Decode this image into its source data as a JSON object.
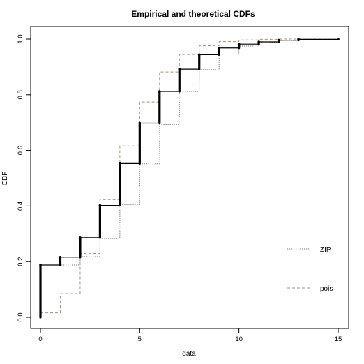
{
  "chart_data": {
    "type": "line",
    "title": "Empirical and theoretical CDFs",
    "xlabel": "data",
    "ylabel": "CDF",
    "xlim": [
      0,
      15
    ],
    "ylim": [
      0,
      1
    ],
    "x_ticks": [
      0,
      5,
      10,
      15
    ],
    "y_ticks": [
      0.0,
      0.2,
      0.4,
      0.6,
      0.8,
      1.0
    ],
    "x_tick_labels": [
      "0",
      "5",
      "10",
      "15"
    ],
    "y_tick_labels": [
      "0.0",
      "0.2",
      "0.4",
      "0.6",
      "0.8",
      "1.0"
    ],
    "grid": false,
    "legend_position": "right",
    "empirical": {
      "x": [
        0,
        1,
        2,
        3,
        4,
        5,
        6,
        7,
        8,
        9,
        10,
        11,
        12,
        13,
        15
      ],
      "cdf": [
        0.188,
        0.216,
        0.286,
        0.402,
        0.553,
        0.698,
        0.812,
        0.892,
        0.944,
        0.968,
        0.982,
        0.99,
        0.996,
        0.999,
        1.0
      ],
      "color": "#000000"
    },
    "series": [
      {
        "name": "ZIP",
        "style": "dotted",
        "color": "#777777",
        "x": [
          0,
          1,
          2,
          3,
          4,
          5,
          6,
          7,
          8,
          9,
          10,
          11,
          12,
          13,
          14,
          15
        ],
        "cdf": [
          0.188,
          0.188,
          0.218,
          0.283,
          0.405,
          0.552,
          0.693,
          0.812,
          0.89,
          0.946,
          0.975,
          0.988,
          0.995,
          0.998,
          0.999,
          1.0
        ]
      },
      {
        "name": "pois",
        "style": "dashed",
        "color": "#a09080",
        "x": [
          0,
          1,
          2,
          3,
          4,
          5,
          6,
          7,
          8,
          9,
          10,
          11,
          12,
          13,
          14,
          15
        ],
        "cdf": [
          0.016,
          0.085,
          0.229,
          0.423,
          0.616,
          0.774,
          0.882,
          0.945,
          0.976,
          0.991,
          0.997,
          0.999,
          1.0,
          1.0,
          1.0,
          1.0
        ]
      }
    ]
  }
}
